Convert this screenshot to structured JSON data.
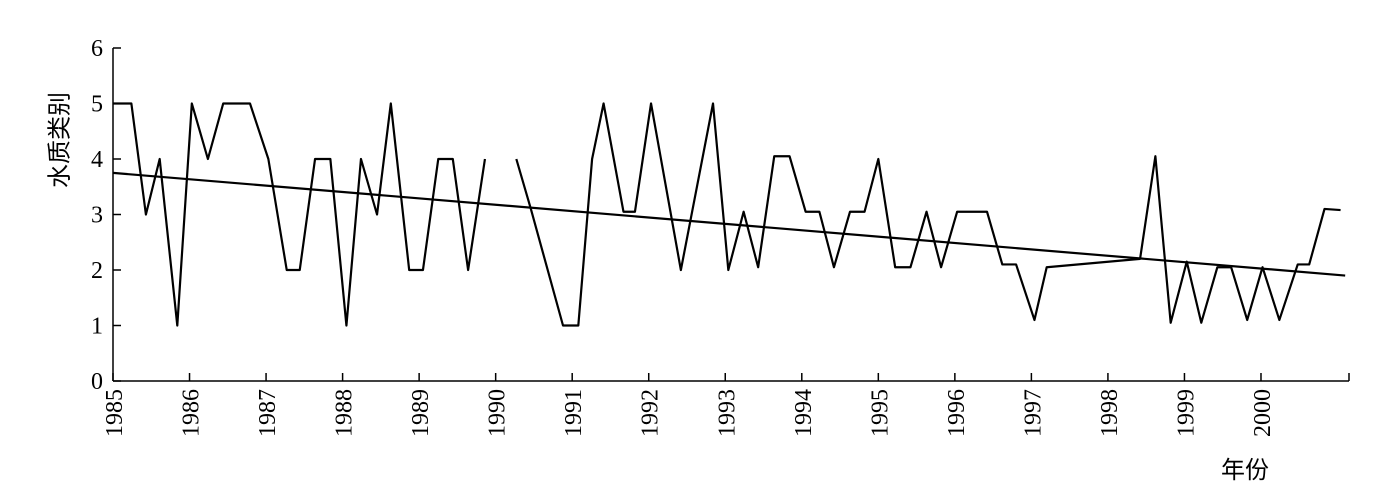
{
  "chart_data": {
    "type": "line",
    "x_label": "年份",
    "y_label": "水质类别",
    "xlim": [
      1985,
      2001.15
    ],
    "ylim": [
      0,
      6
    ],
    "xticks": [
      1985,
      1986,
      1987,
      1988,
      1989,
      1990,
      1991,
      1992,
      1993,
      1994,
      1995,
      1996,
      1997,
      1998,
      1999,
      2000
    ],
    "yticks": [
      0,
      1,
      2,
      3,
      4,
      5,
      6
    ],
    "series": [
      {
        "color": "#000000",
        "x": [
          1985.0,
          1985.24,
          1985.43,
          1985.61,
          1985.84,
          1986.03,
          1986.24,
          1986.44,
          1986.79,
          1987.03,
          1987.27,
          1987.44,
          1987.64,
          1987.84,
          1988.05,
          1988.24,
          1988.45,
          1988.63,
          1988.87,
          1989.05,
          1989.25,
          1989.44,
          1989.64,
          1989.86,
          1990.06,
          1990.27,
          1990.46,
          1990.88,
          1991.08,
          1991.26,
          1991.41,
          1991.67,
          1991.82,
          1992.03,
          1992.42,
          1992.84,
          1993.04,
          1993.24,
          1993.43,
          1993.64,
          1993.84,
          1994.05,
          1994.23,
          1994.42,
          1994.63,
          1994.82,
          1995.0,
          1995.22,
          1995.42,
          1995.63,
          1995.82,
          1996.03,
          1996.42,
          1996.62,
          1996.8,
          1997.04,
          1997.2,
          1998.42,
          1998.62,
          1998.82,
          1999.03,
          1999.22,
          1999.43,
          1999.61,
          1999.82,
          2000.02,
          2000.24,
          2000.48,
          2000.63,
          2000.83,
          2001.04
        ],
        "values": [
          5,
          5,
          3,
          4,
          1,
          5,
          4,
          5,
          5,
          4,
          2,
          2,
          4,
          4,
          1,
          4,
          3,
          5,
          2,
          2,
          4,
          4,
          2,
          4,
          null,
          4,
          3.1,
          1,
          1,
          4,
          5,
          3.05,
          3.05,
          5,
          2,
          5,
          2,
          3.05,
          2.05,
          4.05,
          4.05,
          3.05,
          3.05,
          2.05,
          3.05,
          3.05,
          4,
          2.05,
          2.05,
          3.05,
          2.05,
          3.05,
          3.05,
          2.1,
          2.1,
          1.1,
          2.05,
          2.2,
          4.05,
          1.05,
          2.15,
          1.05,
          2.05,
          2.05,
          1.1,
          2.05,
          1.1,
          2.1,
          2.1,
          3.1,
          3.08
        ]
      },
      {
        "color": "#000000",
        "x": [
          1985.0,
          2001.1
        ],
        "values": [
          3.75,
          1.9
        ]
      }
    ]
  }
}
